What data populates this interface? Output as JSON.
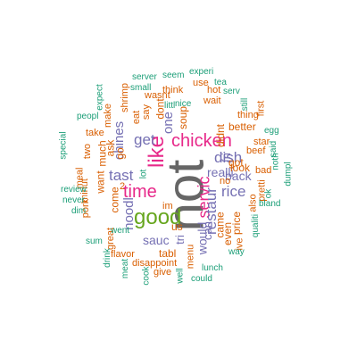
{
  "palette": {
    "gray": "#666666",
    "pink": "#e7298a",
    "green": "#66a61e",
    "purple": "#7570b3",
    "orange": "#d95f02",
    "teal": "#1b9e77"
  },
  "words": [
    {
      "text": "not",
      "color": "gray",
      "size": "xl"
    },
    {
      "text": "good",
      "color": "green",
      "size": "l"
    },
    {
      "text": "chicken",
      "color": "pink",
      "size": "l"
    },
    {
      "text": "like",
      "color": "pink",
      "size": "l"
    },
    {
      "text": "time",
      "color": "pink",
      "size": "l"
    },
    {
      "text": "servic",
      "color": "pink",
      "size": "l"
    },
    {
      "text": "restaur",
      "color": "purple",
      "size": "ml"
    },
    {
      "text": "dish",
      "color": "purple",
      "size": "ml"
    },
    {
      "text": "get",
      "color": "purple",
      "size": "ml"
    },
    {
      "text": "tast",
      "color": "purple",
      "size": "ml"
    },
    {
      "text": "rice",
      "color": "purple",
      "size": "ml"
    },
    {
      "text": "noodl",
      "color": "purple",
      "size": "m"
    },
    {
      "text": "chines",
      "color": "purple",
      "size": "m"
    },
    {
      "text": "one",
      "color": "purple",
      "size": "m"
    },
    {
      "text": "realli",
      "color": "purple",
      "size": "m"
    },
    {
      "text": "back",
      "color": "purple",
      "size": "m"
    },
    {
      "text": "sauc",
      "color": "purple",
      "size": "m"
    },
    {
      "text": "would",
      "color": "purple",
      "size": "m"
    },
    {
      "text": "fri",
      "color": "purple",
      "size": "m"
    },
    {
      "text": "tri",
      "color": "purple",
      "size": "m"
    },
    {
      "text": "can",
      "color": "purple",
      "size": "m"
    },
    {
      "text": "come",
      "color": "orange",
      "size": "s"
    },
    {
      "text": "soup",
      "color": "orange",
      "size": "s"
    },
    {
      "text": "dont",
      "color": "orange",
      "size": "s"
    },
    {
      "text": "didnt",
      "color": "orange",
      "size": "s"
    },
    {
      "text": "came",
      "color": "orange",
      "size": "s"
    },
    {
      "text": "even",
      "color": "orange",
      "size": "s"
    },
    {
      "text": "got",
      "color": "orange",
      "size": "s"
    },
    {
      "text": "price",
      "color": "orange",
      "size": "s"
    },
    {
      "text": "look",
      "color": "orange",
      "size": "s"
    },
    {
      "text": "better",
      "color": "orange",
      "size": "s"
    },
    {
      "text": "want",
      "color": "orange",
      "size": "s"
    },
    {
      "text": "much",
      "color": "orange",
      "size": "s"
    },
    {
      "text": "ask",
      "color": "orange",
      "size": "s"
    },
    {
      "text": "tabl",
      "color": "orange",
      "size": "s"
    },
    {
      "text": "us",
      "color": "orange",
      "size": "s"
    },
    {
      "text": "go",
      "color": "orange",
      "size": "s"
    },
    {
      "text": "menu",
      "color": "orange",
      "size": "s"
    },
    {
      "text": "disappoint",
      "color": "orange",
      "size": "s"
    },
    {
      "text": "beef",
      "color": "orange",
      "size": "s"
    },
    {
      "text": "also",
      "color": "orange",
      "size": "s"
    },
    {
      "text": "no",
      "color": "orange",
      "size": "s"
    },
    {
      "text": "eat",
      "color": "orange",
      "size": "s"
    },
    {
      "text": "say",
      "color": "orange",
      "size": "s"
    },
    {
      "text": "think",
      "color": "orange",
      "size": "s"
    },
    {
      "text": "wait",
      "color": "orange",
      "size": "s"
    },
    {
      "text": "thing",
      "color": "orange",
      "size": "s"
    },
    {
      "text": "pork",
      "color": "orange",
      "size": "s"
    },
    {
      "text": "flavor",
      "color": "orange",
      "size": "s"
    },
    {
      "text": "take",
      "color": "orange",
      "size": "s"
    },
    {
      "text": "make",
      "color": "orange",
      "size": "s"
    },
    {
      "text": "meal",
      "color": "orange",
      "size": "s"
    },
    {
      "text": "great",
      "color": "orange",
      "size": "s"
    },
    {
      "text": "ive",
      "color": "orange",
      "size": "s"
    },
    {
      "text": "bad",
      "color": "orange",
      "size": "s"
    },
    {
      "text": "pretti",
      "color": "orange",
      "size": "s"
    },
    {
      "text": "hot",
      "color": "orange",
      "size": "s"
    },
    {
      "text": "first",
      "color": "orange",
      "size": "s"
    },
    {
      "text": "use",
      "color": "orange",
      "size": "s"
    },
    {
      "text": "wasnt",
      "color": "orange",
      "size": "s"
    },
    {
      "text": "im",
      "color": "orange",
      "size": "s"
    },
    {
      "text": "2",
      "color": "orange",
      "size": "s"
    },
    {
      "text": "star",
      "color": "orange",
      "size": "s"
    },
    {
      "text": "two",
      "color": "orange",
      "size": "s"
    },
    {
      "text": "minut",
      "color": "orange",
      "size": "s"
    },
    {
      "text": "shrimp",
      "color": "orange",
      "size": "s"
    },
    {
      "text": "give",
      "color": "orange",
      "size": "s"
    },
    {
      "text": "way",
      "color": "teal",
      "size": "xs"
    },
    {
      "text": "lunch",
      "color": "teal",
      "size": "xs"
    },
    {
      "text": "could",
      "color": "teal",
      "size": "xs"
    },
    {
      "text": "well",
      "color": "teal",
      "size": "xs"
    },
    {
      "text": "cook",
      "color": "teal",
      "size": "xs"
    },
    {
      "text": "meat",
      "color": "teal",
      "size": "xs"
    },
    {
      "text": "drink",
      "color": "teal",
      "size": "xs"
    },
    {
      "text": "sum",
      "color": "teal",
      "size": "xs"
    },
    {
      "text": "went",
      "color": "teal",
      "size": "xs"
    },
    {
      "text": "dim",
      "color": "teal",
      "size": "xs"
    },
    {
      "text": "never",
      "color": "teal",
      "size": "xs"
    },
    {
      "text": "review",
      "color": "teal",
      "size": "xs"
    },
    {
      "text": "special",
      "color": "teal",
      "size": "xs"
    },
    {
      "text": "peopl",
      "color": "teal",
      "size": "xs"
    },
    {
      "text": "expect",
      "color": "teal",
      "size": "xs"
    },
    {
      "text": "server",
      "color": "teal",
      "size": "xs"
    },
    {
      "text": "small",
      "color": "teal",
      "size": "xs"
    },
    {
      "text": "seem",
      "color": "teal",
      "size": "xs"
    },
    {
      "text": "experi",
      "color": "teal",
      "size": "xs"
    },
    {
      "text": "tea",
      "color": "teal",
      "size": "xs"
    },
    {
      "text": "serv",
      "color": "teal",
      "size": "xs"
    },
    {
      "text": "littl",
      "color": "teal",
      "size": "xs"
    },
    {
      "text": "lot",
      "color": "teal",
      "size": "xs"
    },
    {
      "text": "nice",
      "color": "teal",
      "size": "xs"
    },
    {
      "text": "still",
      "color": "teal",
      "size": "xs"
    },
    {
      "text": "egg",
      "color": "teal",
      "size": "xs"
    },
    {
      "text": "dumpl",
      "color": "teal",
      "size": "xs"
    },
    {
      "text": "said",
      "color": "teal",
      "size": "xs"
    },
    {
      "text": "noth",
      "color": "teal",
      "size": "xs"
    },
    {
      "text": "ok",
      "color": "teal",
      "size": "xs"
    },
    {
      "text": "bland",
      "color": "teal",
      "size": "xs"
    },
    {
      "text": "qualiti",
      "color": "teal",
      "size": "xs"
    }
  ]
}
